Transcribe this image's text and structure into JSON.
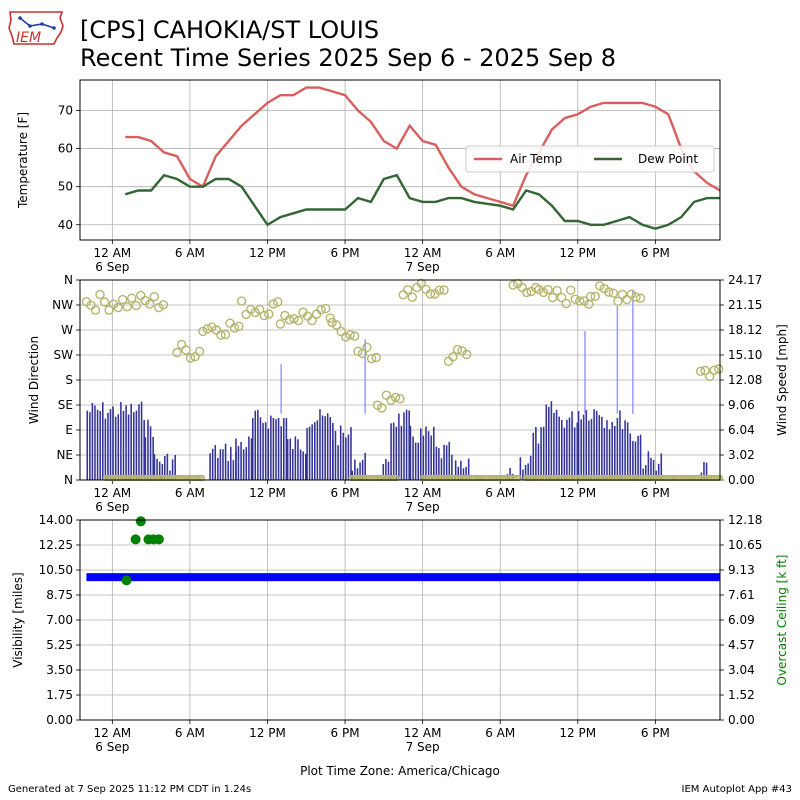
{
  "header": {
    "logo_text": "IEM",
    "title_line1": "[CPS] CAHOKIA/ST LOUIS",
    "title_line2": "Recent Time Series 2025 Sep 6 - 2025 Sep 8"
  },
  "footer": {
    "generated": "Generated at 7 Sep 2025 11:12 PM CDT in 1.24s",
    "app": "IEM Autoplot App #43",
    "timezone_label": "Plot Time Zone: America/Chicago"
  },
  "colors": {
    "air_temp": "#d95f5f",
    "dew_point": "#336633",
    "wind_speed_bar": "#333399",
    "wind_gust_bar": "#9999ff",
    "wind_dir_marker": "#b5b56e",
    "visibility": "#0000ff",
    "ceiling": "#008000",
    "grid": "#b0b0b0"
  },
  "chart_data": [
    {
      "type": "line",
      "panel": "temperature",
      "ylabel": "Temperature [F]",
      "ylim": [
        36,
        78
      ],
      "yticks": [
        40,
        50,
        60,
        70
      ],
      "xlim_hours": [
        -2.5,
        47
      ],
      "xticks_hours": [
        0,
        6,
        12,
        18,
        24,
        30,
        36,
        42
      ],
      "xtick_labels": [
        "12 AM",
        "6 AM",
        "12 PM",
        "6 PM",
        "12 AM",
        "6 AM",
        "12 PM",
        "6 PM"
      ],
      "xtick_sublabels": [
        {
          "hour": 0,
          "text": "6 Sep"
        },
        {
          "hour": 24,
          "text": "7 Sep"
        }
      ],
      "grid": true,
      "legend_placement": "right",
      "series": [
        {
          "name": "Air Temp",
          "x_hours": [
            1,
            2,
            3,
            4,
            5,
            6,
            7,
            8,
            9,
            10,
            11,
            12,
            13,
            14,
            15,
            16,
            17,
            18,
            19,
            20,
            21,
            22,
            23,
            24,
            25,
            26,
            27,
            28,
            29,
            30,
            31,
            32,
            33,
            34,
            35,
            36,
            37,
            38,
            39,
            40,
            41,
            42,
            43,
            44,
            45,
            46,
            47
          ],
          "values": [
            63,
            63,
            62,
            59,
            58,
            52,
            50,
            58,
            62,
            66,
            69,
            72,
            74,
            74,
            76,
            76,
            75,
            74,
            70,
            67,
            62,
            60,
            66,
            62,
            61,
            55,
            50,
            48,
            47,
            46,
            45,
            53,
            59,
            65,
            68,
            69,
            71,
            72,
            72,
            72,
            72,
            71,
            69,
            60,
            54,
            51,
            49
          ]
        },
        {
          "name": "Dew Point",
          "x_hours": [
            1,
            2,
            3,
            4,
            5,
            6,
            7,
            8,
            9,
            10,
            11,
            12,
            13,
            14,
            15,
            16,
            17,
            18,
            19,
            20,
            21,
            22,
            23,
            24,
            25,
            26,
            27,
            28,
            29,
            30,
            31,
            32,
            33,
            34,
            35,
            36,
            37,
            38,
            39,
            40,
            41,
            42,
            43,
            44,
            45,
            46,
            47
          ],
          "values": [
            48,
            49,
            49,
            53,
            52,
            50,
            50,
            52,
            52,
            50,
            45,
            40,
            42,
            43,
            44,
            44,
            44,
            44,
            47,
            46,
            52,
            53,
            47,
            46,
            46,
            47,
            47,
            46,
            45.5,
            45,
            44,
            49,
            48,
            45,
            41,
            41,
            40,
            40,
            41,
            42,
            40,
            39,
            40,
            42,
            46,
            47,
            47
          ]
        }
      ]
    },
    {
      "type": "bar",
      "panel": "wind",
      "ylabel_left": "Wind Direction",
      "ylabel_right": "Wind Speed [mph]",
      "left_ticks": [
        "N",
        "NE",
        "E",
        "SE",
        "S",
        "SW",
        "W",
        "NW",
        "N"
      ],
      "right_ticks": [
        "0.00",
        "3.02",
        "6.04",
        "9.06",
        "12.08",
        "15.10",
        "18.12",
        "21.15",
        "24.17"
      ],
      "speed_ylim": [
        0,
        24.17
      ],
      "direction_ylim": [
        0,
        360
      ],
      "xlim_hours": [
        -2.5,
        47
      ],
      "xticks_hours": [
        0,
        6,
        12,
        18,
        24,
        30,
        36,
        42
      ],
      "xtick_labels": [
        "12 AM",
        "6 AM",
        "12 PM",
        "6 PM",
        "12 AM",
        "6 AM",
        "12 PM",
        "6 PM"
      ],
      "xtick_sublabels": [
        {
          "hour": 0,
          "text": "6 Sep"
        },
        {
          "hour": 24,
          "text": "7 Sep"
        }
      ],
      "grid": true,
      "speed_segments": [
        {
          "start": -2,
          "end": 2.5,
          "level": 9
        },
        {
          "start": 2.5,
          "end": 3.2,
          "level": 7
        },
        {
          "start": 3.2,
          "end": 5.0,
          "level": 3
        },
        {
          "start": 7.5,
          "end": 9.5,
          "level": 4
        },
        {
          "start": 9.5,
          "end": 10.8,
          "level": 5
        },
        {
          "start": 10.8,
          "end": 13.5,
          "level": 8
        },
        {
          "start": 13.5,
          "end": 15.0,
          "level": 5
        },
        {
          "start": 15.0,
          "end": 17.0,
          "level": 8
        },
        {
          "start": 17.0,
          "end": 18.5,
          "level": 6
        },
        {
          "start": 18.5,
          "end": 19.5,
          "level": 3
        },
        {
          "start": 20.5,
          "end": 21.5,
          "level": 2
        },
        {
          "start": 21.5,
          "end": 23.0,
          "level": 8
        },
        {
          "start": 23.0,
          "end": 24.8,
          "level": 6
        },
        {
          "start": 24.8,
          "end": 26.2,
          "level": 4
        },
        {
          "start": 26.5,
          "end": 27.5,
          "level": 2
        },
        {
          "start": 30.5,
          "end": 31.0,
          "level": 2
        },
        {
          "start": 31.5,
          "end": 32.5,
          "level": 3
        },
        {
          "start": 32.5,
          "end": 33.5,
          "level": 6
        },
        {
          "start": 33.5,
          "end": 34.5,
          "level": 9
        },
        {
          "start": 34.5,
          "end": 36.0,
          "level": 8
        },
        {
          "start": 36.0,
          "end": 38.0,
          "level": 9
        },
        {
          "start": 38.0,
          "end": 40.0,
          "level": 8
        },
        {
          "start": 40.0,
          "end": 41.0,
          "level": 6
        },
        {
          "start": 41.0,
          "end": 42.5,
          "level": 3
        },
        {
          "start": 45.5,
          "end": 46.0,
          "level": 2
        }
      ],
      "gusts": [
        {
          "hour": 13.0,
          "value": 14
        },
        {
          "hour": 19.5,
          "value": 17
        },
        {
          "hour": 36.5,
          "value": 18
        },
        {
          "hour": 39.0,
          "value": 21
        },
        {
          "hour": 40.2,
          "value": 23
        }
      ],
      "direction_segments": [
        {
          "start": -2,
          "end": 4,
          "center": 320
        },
        {
          "start": 5,
          "end": 7,
          "center": 232
        },
        {
          "start": 7,
          "end": 10,
          "center": 275
        },
        {
          "start": 10,
          "end": 13,
          "center": 310
        },
        {
          "start": 13,
          "end": 17,
          "center": 295
        },
        {
          "start": 17,
          "end": 19,
          "center": 270
        },
        {
          "start": 19,
          "end": 20.5,
          "center": 225
        },
        {
          "start": 20.5,
          "end": 22.5,
          "center": 140
        },
        {
          "start": 22.5,
          "end": 26,
          "center": 340
        },
        {
          "start": 26,
          "end": 27.5,
          "center": 225
        },
        {
          "start": 31,
          "end": 33,
          "center": 350
        },
        {
          "start": 33,
          "end": 37,
          "center": 330
        },
        {
          "start": 37,
          "end": 41,
          "center": 335
        },
        {
          "start": 45.5,
          "end": 47,
          "center": 195
        }
      ],
      "calm_ranges": [
        [
          -0.5,
          7
        ],
        [
          18.5,
          22
        ],
        [
          24,
          31.5
        ],
        [
          32,
          47
        ]
      ]
    },
    {
      "type": "scatter",
      "panel": "visibility",
      "ylabel_left": "Visibility [miles]",
      "ylabel_right": "Overcast Ceiling [k ft]",
      "left_ticks": [
        "0.00",
        "1.75",
        "3.50",
        "5.25",
        "7.00",
        "8.75",
        "10.50",
        "12.25",
        "14.00"
      ],
      "right_ticks": [
        "0.00",
        "1.52",
        "3.04",
        "4.57",
        "6.09",
        "7.61",
        "9.13",
        "10.65",
        "12.18"
      ],
      "visibility_ylim": [
        0,
        14
      ],
      "ceiling_ylim": [
        0,
        12.18
      ],
      "xlim_hours": [
        -2.5,
        47
      ],
      "xticks_hours": [
        0,
        6,
        12,
        18,
        24,
        30,
        36,
        42
      ],
      "xtick_labels": [
        "12 AM",
        "6 AM",
        "12 PM",
        "6 PM",
        "12 AM",
        "6 AM",
        "12 PM",
        "6 PM"
      ],
      "xtick_sublabels": [
        {
          "hour": 0,
          "text": "6 Sep"
        },
        {
          "hour": 24,
          "text": "7 Sep"
        }
      ],
      "grid": true,
      "visibility": {
        "start_hour": -2,
        "end_hour": 47,
        "value": 10
      },
      "ceiling_points": [
        {
          "hour": 1.1,
          "value": 8.5
        },
        {
          "hour": 1.8,
          "value": 11.0
        },
        {
          "hour": 2.2,
          "value": 12.1
        },
        {
          "hour": 2.8,
          "value": 11.0
        },
        {
          "hour": 3.2,
          "value": 11.0
        },
        {
          "hour": 3.6,
          "value": 11.0
        }
      ]
    }
  ]
}
